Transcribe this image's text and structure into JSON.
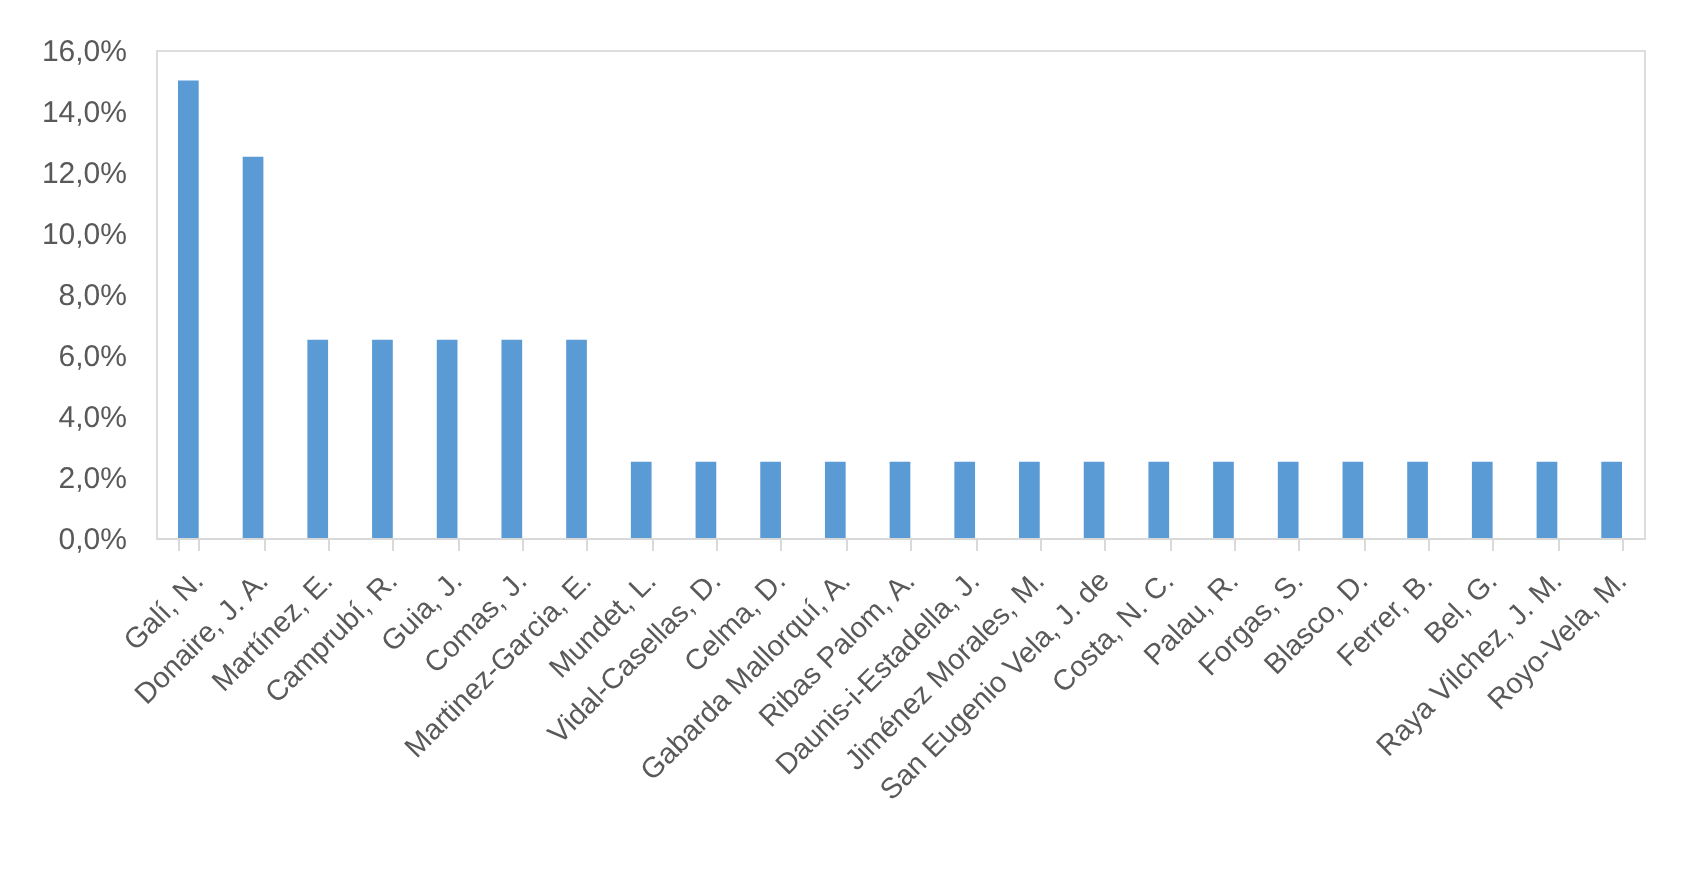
{
  "chart_data": {
    "type": "bar",
    "categories": [
      "Galí, N.",
      "Donaire, J. A.",
      "Martínez, E.",
      "Camprubí, R.",
      "Guia, J.",
      "Comas, J.",
      "Martinez-Garcia, E.",
      "Mundet, L.",
      "Vidal-Casellas, D.",
      "Celma, D.",
      "Gabarda Mallorquí, A.",
      "Ribas Palom, A.",
      "Daunis-i-Estadella, J.",
      "Jiménez Morales, M.",
      "San Eugenio Vela, J. de",
      "Costa, N. C.",
      "Palau, R.",
      "Forgas, S.",
      "Blasco, D.",
      "Ferrer, B.",
      "Bel, G.",
      "Raya Vilchez, J. M.",
      "Royo-Vela, M."
    ],
    "values": [
      15.0,
      12.5,
      6.5,
      6.5,
      6.5,
      6.5,
      6.5,
      2.5,
      2.5,
      2.5,
      2.5,
      2.5,
      2.5,
      2.5,
      2.5,
      2.5,
      2.5,
      2.5,
      2.5,
      2.5,
      2.5,
      2.5,
      2.5
    ],
    "color": "#5b9bd5",
    "ylim": [
      0,
      16
    ],
    "yticks": [
      {
        "value": 0,
        "label": "0,0%"
      },
      {
        "value": 2,
        "label": "2,0%"
      },
      {
        "value": 4,
        "label": "4,0%"
      },
      {
        "value": 6,
        "label": "6,0%"
      },
      {
        "value": 8,
        "label": "8,0%"
      },
      {
        "value": 10,
        "label": "10,0%"
      },
      {
        "value": 12,
        "label": "12,0%"
      },
      {
        "value": 14,
        "label": "14,0%"
      },
      {
        "value": 16,
        "label": "16,0%"
      }
    ]
  }
}
